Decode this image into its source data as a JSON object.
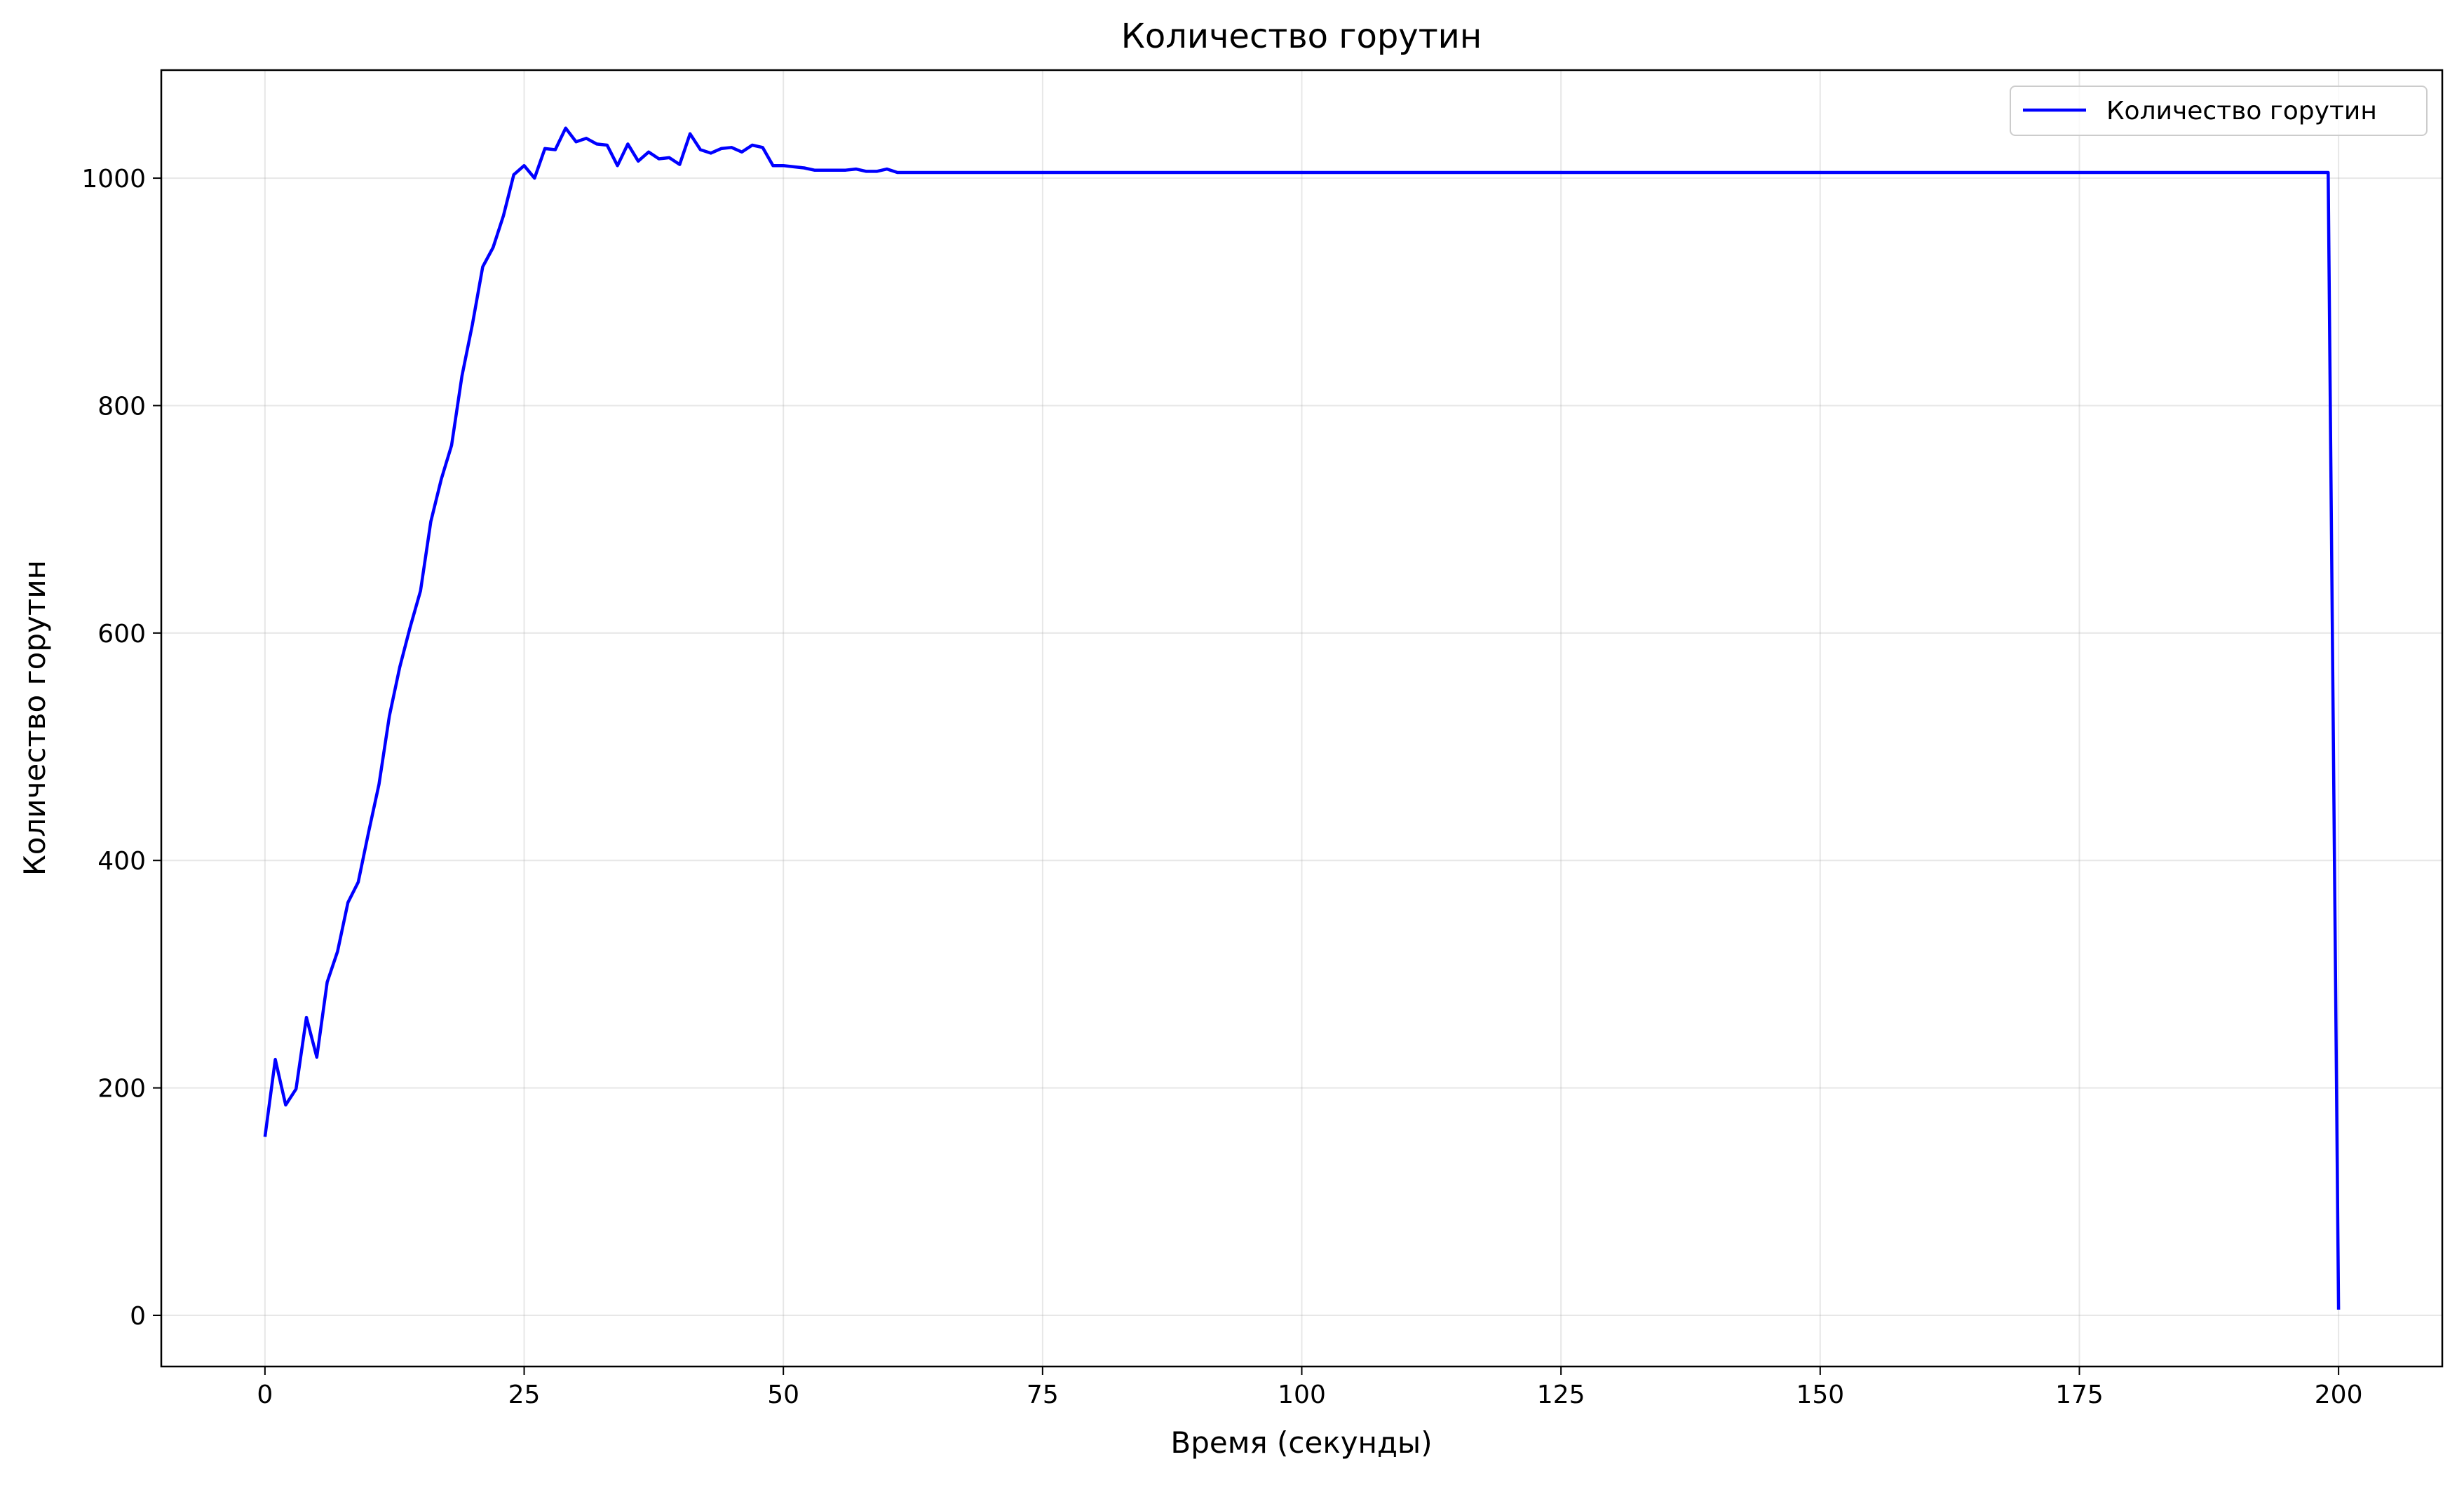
{
  "chart_data": {
    "type": "line",
    "title": "Количество горутин",
    "xlabel": "Время (секунды)",
    "ylabel": "Количество горутин",
    "xlim": [
      -10,
      210
    ],
    "ylim": [
      -45,
      1095
    ],
    "xticks": [
      0,
      25,
      50,
      75,
      100,
      125,
      150,
      175,
      200
    ],
    "yticks": [
      0,
      200,
      400,
      600,
      800,
      1000
    ],
    "grid": true,
    "legend_position": "top-right",
    "colors": {
      "series": "#0000ff",
      "frame": "#000000",
      "grid": "#b0b0b0",
      "background": "#ffffff"
    },
    "series": [
      {
        "name": "Количество горутин",
        "color": "#0000ff",
        "x": [
          0,
          1,
          2,
          3,
          4,
          5,
          6,
          7,
          8,
          9,
          10,
          11,
          12,
          13,
          14,
          15,
          16,
          17,
          18,
          19,
          20,
          21,
          22,
          23,
          24,
          25,
          26,
          27,
          28,
          29,
          30,
          31,
          32,
          33,
          34,
          35,
          36,
          37,
          38,
          39,
          40,
          41,
          42,
          43,
          44,
          45,
          46,
          47,
          48,
          49,
          50,
          51,
          52,
          53,
          54,
          55,
          56,
          57,
          58,
          59,
          60,
          61,
          62,
          199,
          200
        ],
        "y": [
          157,
          225,
          185,
          199,
          262,
          227,
          293,
          320,
          363,
          381,
          425,
          467,
          527,
          570,
          605,
          637,
          698,
          735,
          765,
          826,
          871,
          922,
          939,
          967,
          1003,
          1011,
          1000,
          1026,
          1025,
          1044,
          1032,
          1035,
          1030,
          1029,
          1011,
          1030,
          1015,
          1023,
          1017,
          1018,
          1012,
          1039,
          1025,
          1022,
          1026,
          1027,
          1023,
          1029,
          1027,
          1011,
          1011,
          1010,
          1009,
          1007,
          1007,
          1007,
          1007,
          1008,
          1006,
          1006,
          1008,
          1005,
          1005,
          1005,
          5
        ]
      }
    ]
  }
}
